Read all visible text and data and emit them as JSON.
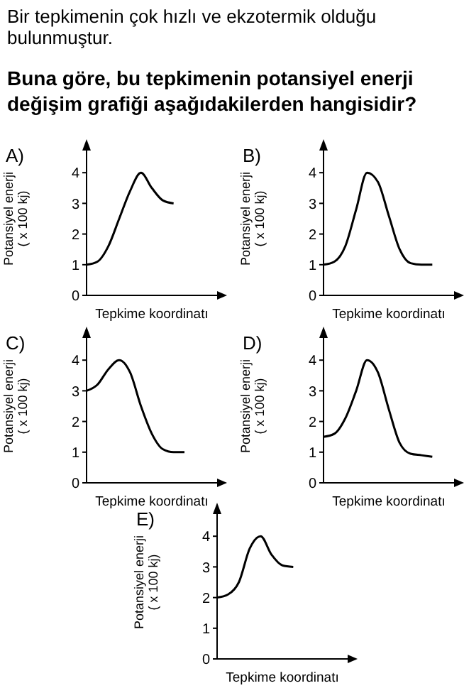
{
  "chart_data": [
    {
      "type": "other",
      "title": "Bir tepkimenin çok hızlı ve ekzotermik olduğu bulunmuştur.",
      "subtitle": "Buna göre, bu tepkimenin potansiyel enerji değişim grafiği aşağıdakilerden hangisidir?"
    },
    {
      "type": "line",
      "title": "A)",
      "xlabel": "Tepkime koordinatı",
      "ylabel": "Potansiyel enerji\n( x 100 kj)",
      "categories": [
        null,
        null,
        null,
        null,
        null,
        null,
        null,
        null,
        null,
        null,
        null,
        null,
        null
      ],
      "values": [
        1,
        1.1,
        1.6,
        2.5,
        3.4,
        4.0,
        3.5,
        3.1,
        3.0,
        null,
        null,
        null,
        null
      ],
      "color": "#000000",
      "ylim": [
        0,
        5
      ],
      "yticks": [
        0,
        1,
        2,
        3,
        4
      ]
    },
    {
      "type": "line",
      "title": "B)",
      "xlabel": "Tepkime koordinatı",
      "ylabel": "Potansiyel enerji\n( x 100 kj)",
      "categories": [
        null,
        null,
        null,
        null,
        null,
        null,
        null,
        null,
        null,
        null,
        null,
        null,
        null
      ],
      "values": [
        1,
        1.1,
        1.6,
        2.8,
        4.0,
        3.7,
        2.6,
        1.5,
        1.05,
        1.0,
        1.0,
        null,
        null
      ],
      "color": "#000000",
      "ylim": [
        0,
        5
      ],
      "yticks": [
        0,
        1,
        2,
        3,
        4
      ]
    },
    {
      "type": "line",
      "title": "C)",
      "xlabel": "Tepkime koordinatı",
      "ylabel": "Potansiyel enerji\n( x 100 kj)",
      "categories": [
        null,
        null,
        null,
        null,
        null,
        null,
        null,
        null,
        null,
        null,
        null,
        null,
        null
      ],
      "values": [
        3,
        3.2,
        3.7,
        4.0,
        3.6,
        2.5,
        1.6,
        1.1,
        1.0,
        1.0,
        null,
        null,
        null
      ],
      "color": "#000000",
      "ylim": [
        0,
        5
      ],
      "yticks": [
        0,
        1,
        2,
        3,
        4
      ]
    },
    {
      "type": "line",
      "title": "D)",
      "xlabel": "Tepkime koordinatı",
      "ylabel": "Potansiyel enerji\n( x 100 kj)",
      "categories": [
        null,
        null,
        null,
        null,
        null,
        null,
        null,
        null,
        null,
        null,
        null,
        null,
        null
      ],
      "values": [
        1.5,
        1.6,
        2.1,
        3.0,
        4.0,
        3.6,
        2.4,
        1.3,
        0.95,
        0.9,
        0.85,
        null,
        null
      ],
      "color": "#000000",
      "ylim": [
        0,
        5
      ],
      "yticks": [
        0,
        1,
        2,
        3,
        4
      ]
    },
    {
      "type": "line",
      "title": "E)",
      "xlabel": "Tepkime koordinatı",
      "ylabel": "Potansiyel enerji\n( x 100 kj)",
      "categories": [
        null,
        null,
        null,
        null,
        null,
        null,
        null,
        null,
        null,
        null,
        null,
        null,
        null
      ],
      "values": [
        2,
        2.1,
        2.5,
        3.6,
        4.0,
        3.4,
        3.05,
        3.0,
        null,
        null,
        null,
        null,
        null
      ],
      "color": "#000000",
      "ylim": [
        0,
        5
      ],
      "yticks": [
        0,
        1,
        2,
        3,
        4
      ]
    }
  ]
}
